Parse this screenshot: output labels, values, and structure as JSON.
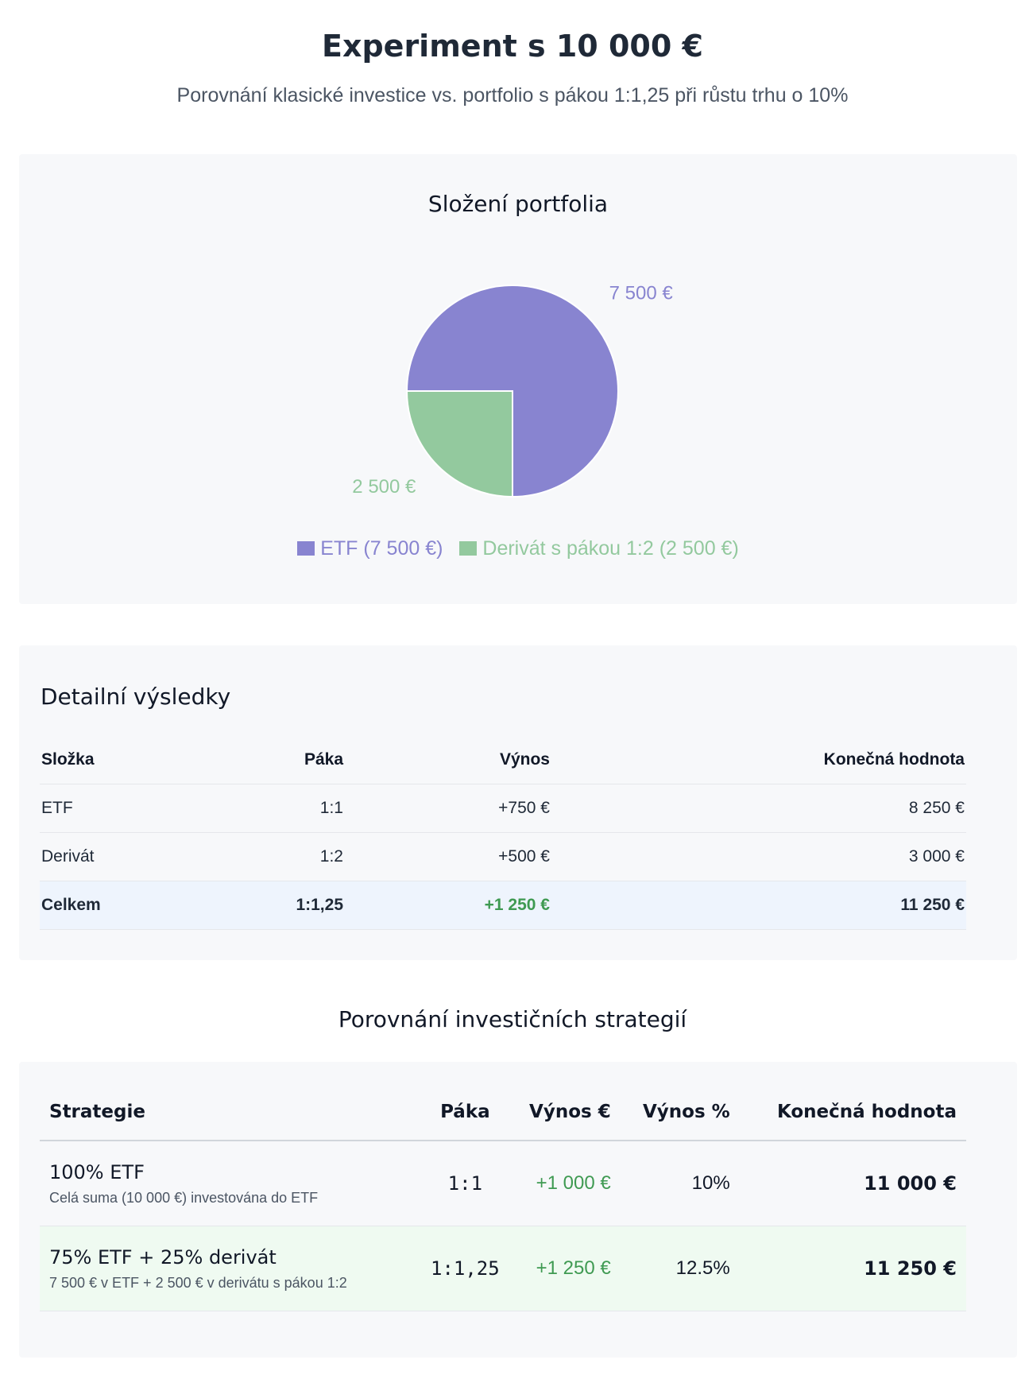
{
  "header": {
    "title": "Experiment s 10 000 €",
    "subtitle": "Porovnání klasické investice vs. portfolio s pákou 1:1,25 při růstu trhu o 10%"
  },
  "chart_data": {
    "type": "pie",
    "title": "Složení portfolia",
    "slices": [
      {
        "label": "ETF (7 500 €)",
        "value": 7500,
        "value_label": "7 500 €",
        "color": "#8884d0"
      },
      {
        "label": "Derivát s pákou 1:2 (2 500 €)",
        "value": 2500,
        "value_label": "2 500 €",
        "color": "#93c99e"
      }
    ],
    "legend_position": "bottom"
  },
  "details": {
    "title": "Detailní výsledky",
    "columns": [
      "Složka",
      "Páka",
      "Výnos",
      "Konečná hodnota"
    ],
    "rows": [
      {
        "component": "ETF",
        "leverage": "1:1",
        "yield": "+750 €",
        "final": "8 250 €"
      },
      {
        "component": "Derivát",
        "leverage": "1:2",
        "yield": "+500 €",
        "final": "3 000 €"
      }
    ],
    "total": {
      "component": "Celkem",
      "leverage": "1:1,25",
      "yield": "+1 250 €",
      "final": "11 250 €"
    }
  },
  "comparison": {
    "title": "Porovnání investičních strategií",
    "columns": [
      "Strategie",
      "Páka",
      "Výnos €",
      "Výnos %",
      "Konečná hodnota"
    ],
    "rows": [
      {
        "name": "100% ETF",
        "desc": "Celá suma (10 000 €) investována do ETF",
        "leverage": "1:1",
        "yield_eur": "+1 000 €",
        "yield_pct": "10%",
        "final": "11 000 €"
      },
      {
        "name": "75% ETF + 25% derivát",
        "desc": "7 500 € v ETF + 2 500 € v derivátu s pákou 1:2",
        "leverage": "1:1,25",
        "yield_eur": "+1 250 €",
        "yield_pct": "12.5%",
        "final": "11 250 €"
      }
    ]
  }
}
